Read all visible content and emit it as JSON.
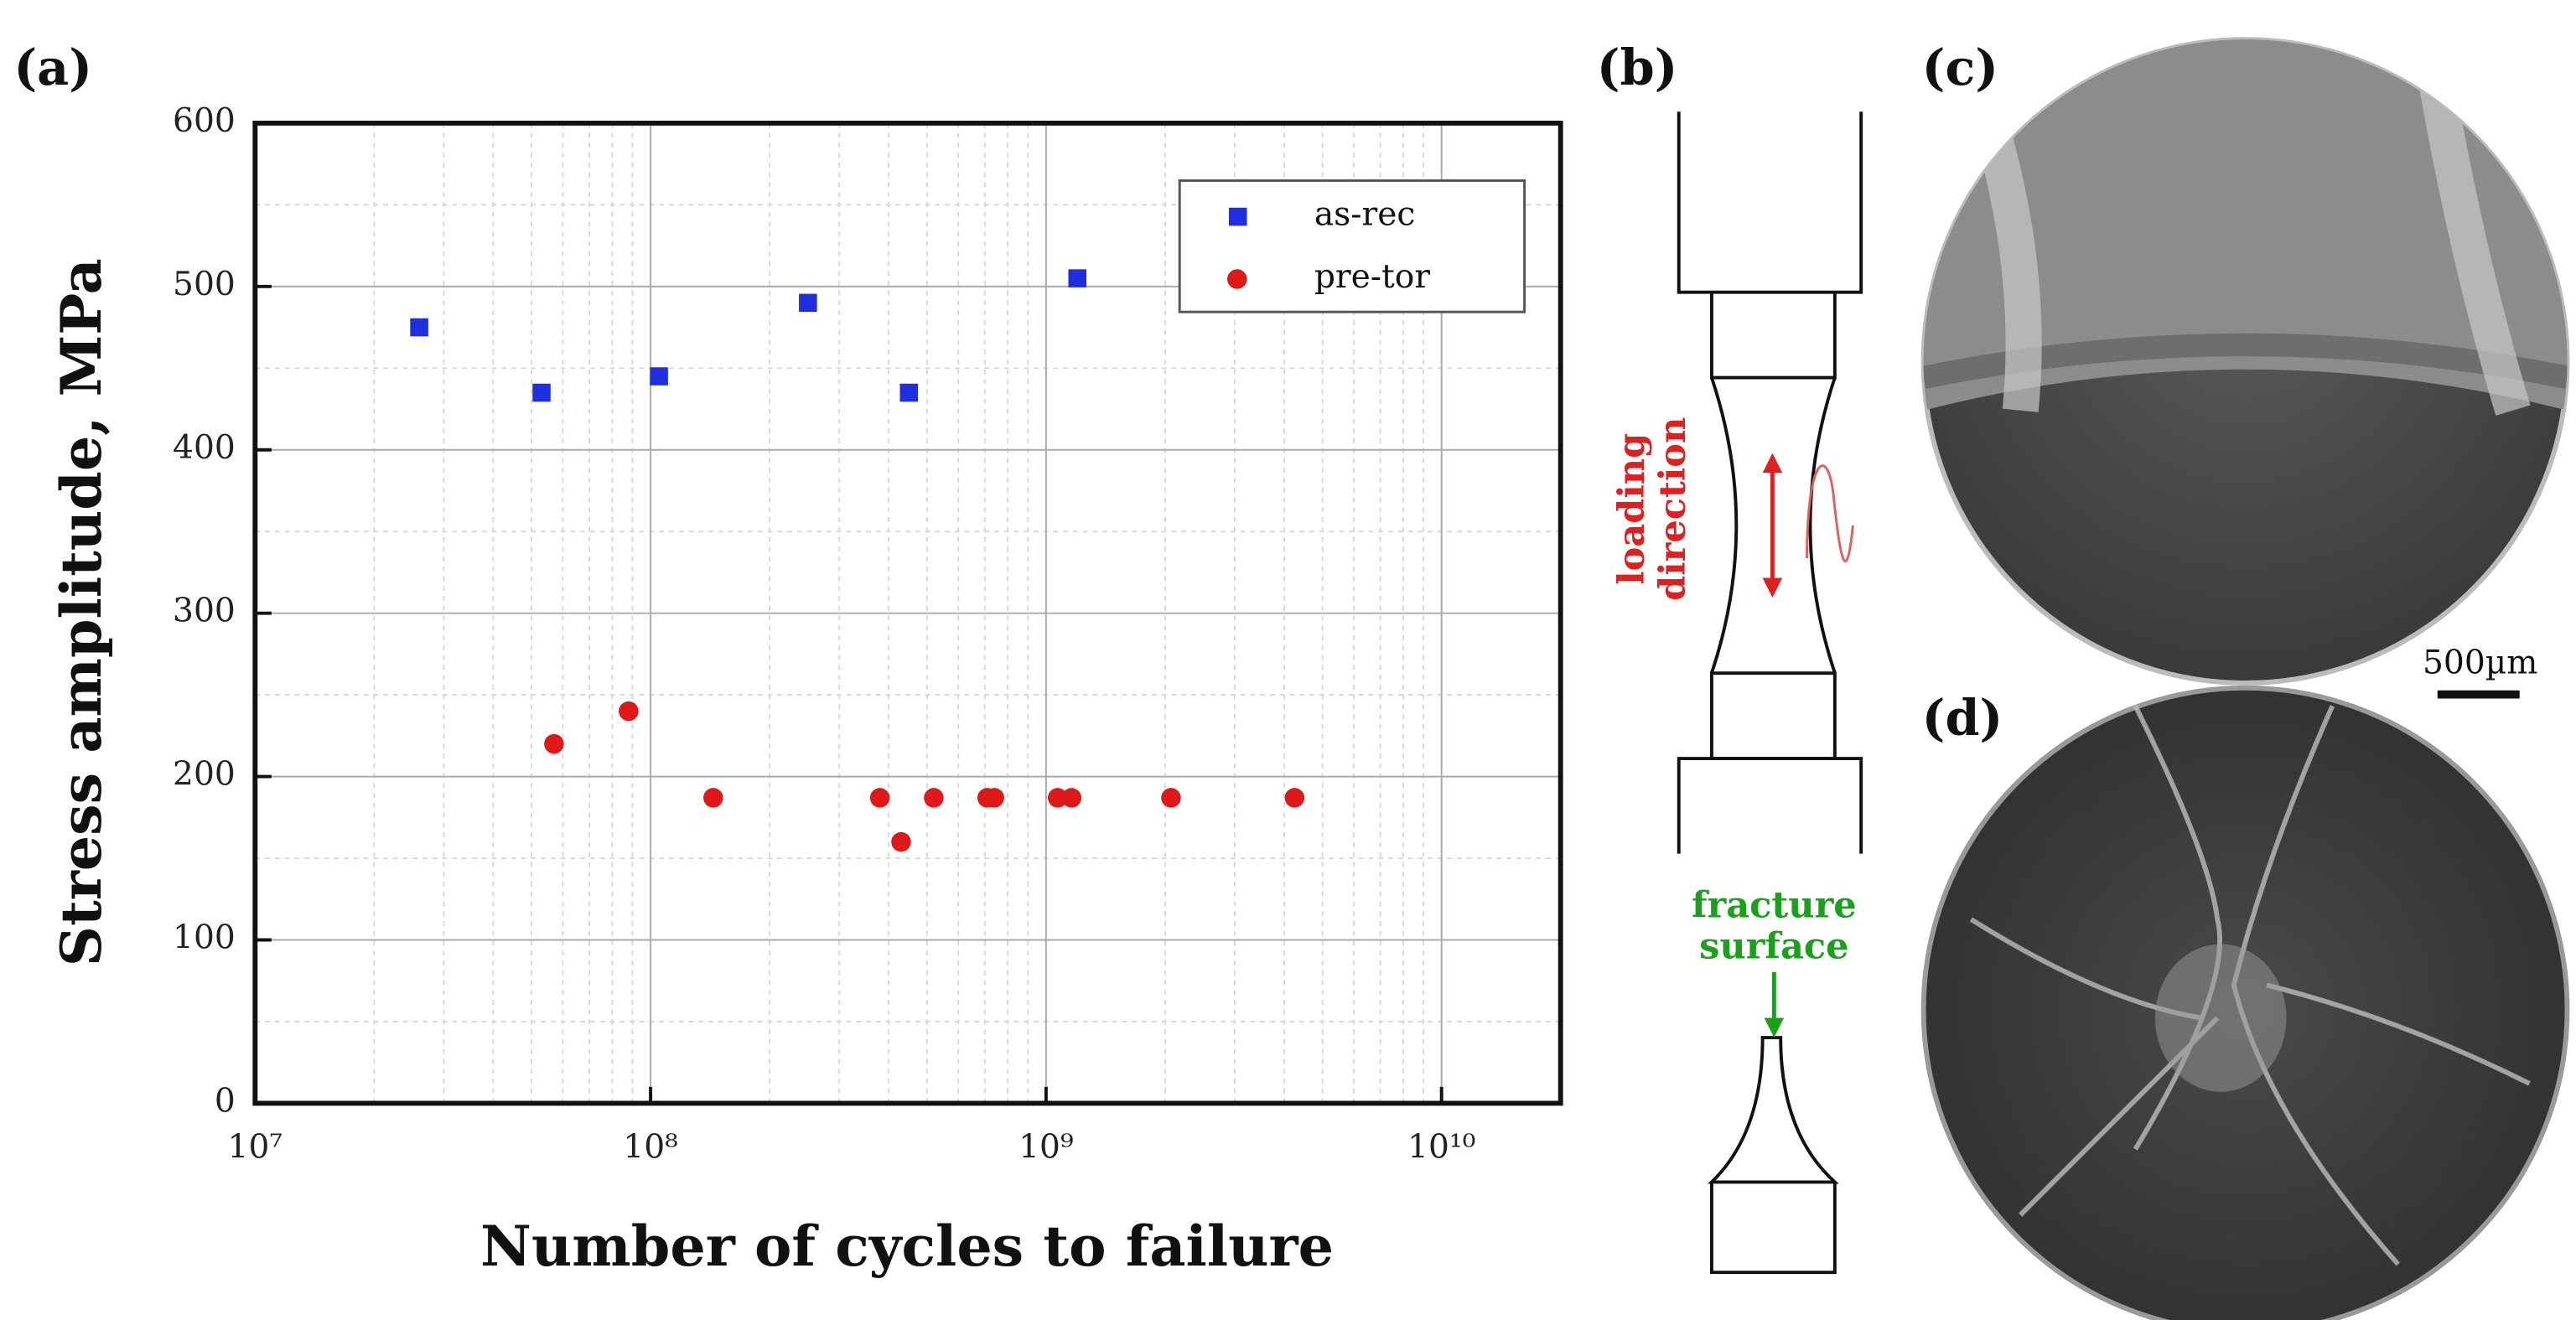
{
  "chart_data": {
    "type": "scatter",
    "xlabel": "Number of cycles to failure",
    "ylabel": "Stress amplitude, MPa",
    "xscale": "log",
    "xlim": [
      10000000,
      20000000000
    ],
    "ylim": [
      0,
      600
    ],
    "xticks": [
      {
        "value": 10000000,
        "label": "10⁷"
      },
      {
        "value": 100000000,
        "label": "10⁸"
      },
      {
        "value": 1000000000,
        "label": "10⁹"
      },
      {
        "value": 10000000000,
        "label": "10¹⁰"
      }
    ],
    "yticks": [
      0,
      100,
      200,
      300,
      400,
      500,
      600
    ],
    "grid": true,
    "legend": "upper right",
    "series": [
      {
        "name": "as-rec",
        "color": "#1f2fe0",
        "marker": "square",
        "x": [
          26000000,
          53000000,
          105000000,
          250000000,
          450000000,
          1200000000
        ],
        "values": [
          475,
          435,
          445,
          490,
          435,
          505
        ]
      },
      {
        "name": "pre-tor",
        "color": "#e01818",
        "marker": "circle",
        "x": [
          57000000,
          88000000,
          144000000,
          380000000,
          430000000,
          520000000,
          710000000,
          740000000,
          1070000000,
          1160000000,
          2070000000,
          4250000000
        ],
        "values": [
          220,
          240,
          187,
          187,
          160,
          187,
          187,
          187,
          187,
          187,
          187,
          187
        ]
      }
    ]
  },
  "panels": {
    "a": "(a)",
    "b": "(b)",
    "c": "(c)",
    "d": "(d)"
  },
  "diagram": {
    "loading_line1": "loading",
    "loading_line2": "direction",
    "fracture_line1": "fracture",
    "fracture_line2": "surface",
    "scale_bar": "500µm"
  }
}
